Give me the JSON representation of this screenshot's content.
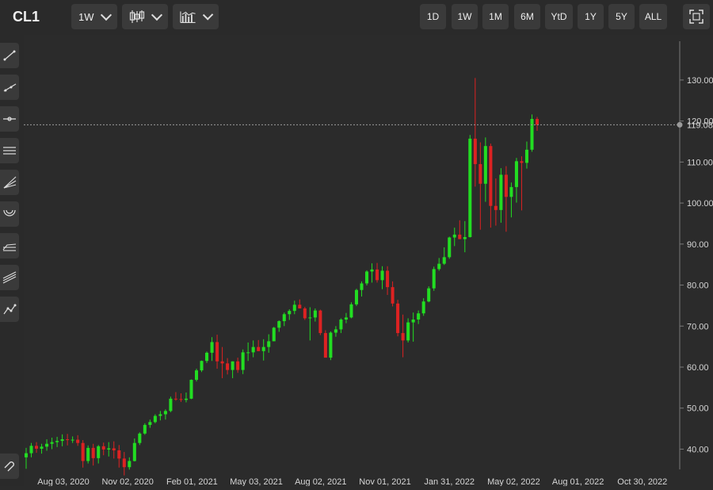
{
  "header": {
    "symbol": "CL1",
    "interval": "1W",
    "chart_style_icon": "candlestick-icon",
    "study_icon": "bar-chart-icon",
    "ranges": [
      "1D",
      "1W",
      "1M",
      "6M",
      "YtD",
      "1Y",
      "5Y",
      "ALL"
    ],
    "fullscreen_icon": "fullscreen-icon"
  },
  "toolbar": {
    "tools": [
      "trend-line-icon",
      "ray-line-icon",
      "horizontal-line-icon",
      "parallel-channel-icon",
      "fan-lines-icon",
      "arc-icon",
      "fibonacci-icon",
      "pitchfork-icon",
      "polyline-icon",
      "magnet-icon"
    ]
  },
  "colors": {
    "up": "#22dd22",
    "down": "#dd2222",
    "background": "#2b2b2b"
  },
  "price_line": {
    "value": 119.08,
    "label": "119.08"
  },
  "chart_data": {
    "type": "candlestick",
    "symbol": "CL1",
    "interval": "weekly",
    "y_ticks": [
      40,
      50,
      60,
      70,
      80,
      90,
      100,
      110,
      120,
      130
    ],
    "y_tick_labels": [
      "40.00",
      "50.00",
      "60.00",
      "70.00",
      "80.00",
      "90.00",
      "100.00",
      "110.00",
      "120.00",
      "130.00"
    ],
    "ylim": [
      31,
      141
    ],
    "x_ticks": [
      "Aug 03, 2020",
      "Nov 02, 2020",
      "Feb 01, 2021",
      "May 03, 2021",
      "Aug 02, 2021",
      "Nov 01, 2021",
      "Jan 31, 2022",
      "May 02, 2022",
      "Aug 01, 2022",
      "Oct 30, 2022"
    ],
    "grid": false,
    "last_price": 119.08,
    "candles": [
      [
        38.0,
        40.3,
        35.2,
        39.0
      ],
      [
        39.0,
        41.5,
        38.0,
        40.8
      ],
      [
        40.8,
        41.7,
        39.1,
        40.1
      ],
      [
        40.1,
        41.3,
        38.9,
        40.6
      ],
      [
        40.6,
        42.4,
        39.6,
        41.3
      ],
      [
        41.3,
        42.8,
        40.0,
        41.7
      ],
      [
        41.7,
        43.0,
        40.5,
        42.0
      ],
      [
        42.0,
        43.6,
        40.7,
        42.4
      ],
      [
        42.4,
        43.7,
        40.9,
        42.3
      ],
      [
        42.3,
        43.1,
        41.5,
        42.3
      ],
      [
        42.3,
        43.4,
        40.8,
        41.5
      ],
      [
        41.5,
        42.2,
        35.5,
        37.1
      ],
      [
        37.1,
        40.9,
        36.5,
        40.3
      ],
      [
        40.3,
        41.3,
        36.0,
        37.8
      ],
      [
        37.8,
        41.0,
        36.5,
        40.7
      ],
      [
        40.7,
        41.6,
        38.5,
        39.9
      ],
      [
        39.9,
        41.7,
        38.2,
        40.2
      ],
      [
        40.2,
        41.9,
        37.7,
        39.7
      ],
      [
        39.7,
        41.0,
        35.5,
        37.7
      ],
      [
        37.7,
        39.3,
        33.6,
        35.6
      ],
      [
        35.6,
        38.0,
        35.0,
        37.1
      ],
      [
        37.1,
        42.6,
        37.0,
        41.5
      ],
      [
        41.5,
        44.1,
        41.0,
        43.8
      ],
      [
        43.8,
        46.3,
        43.5,
        45.9
      ],
      [
        45.9,
        47.2,
        45.2,
        46.6
      ],
      [
        46.6,
        48.5,
        46.3,
        48.1
      ],
      [
        48.1,
        49.3,
        47.0,
        48.5
      ],
      [
        48.5,
        49.7,
        47.2,
        49.3
      ],
      [
        49.3,
        52.8,
        49.0,
        52.3
      ],
      [
        52.3,
        53.9,
        51.8,
        52.2
      ],
      [
        52.2,
        53.6,
        51.5,
        52.0
      ],
      [
        52.0,
        53.8,
        51.4,
        52.3
      ],
      [
        52.3,
        57.0,
        52.2,
        56.9
      ],
      [
        56.9,
        59.6,
        56.5,
        59.2
      ],
      [
        59.2,
        61.6,
        58.8,
        61.5
      ],
      [
        61.5,
        63.8,
        61.0,
        63.5
      ],
      [
        63.5,
        67.3,
        61.5,
        66.1
      ],
      [
        66.1,
        67.9,
        59.6,
        61.4
      ],
      [
        61.4,
        64.9,
        57.3,
        60.9
      ],
      [
        60.9,
        62.2,
        58.2,
        59.3
      ],
      [
        59.3,
        61.4,
        57.3,
        61.4
      ],
      [
        61.4,
        62.3,
        58.6,
        59.3
      ],
      [
        59.3,
        64.3,
        58.3,
        63.6
      ],
      [
        63.6,
        66.0,
        61.5,
        63.6
      ],
      [
        63.6,
        66.5,
        62.4,
        64.9
      ],
      [
        64.9,
        66.6,
        63.9,
        63.9
      ],
      [
        63.9,
        66.8,
        61.6,
        64.9
      ],
      [
        64.9,
        68.0,
        63.5,
        66.3
      ],
      [
        66.3,
        69.8,
        66.3,
        69.6
      ],
      [
        69.6,
        71.4,
        68.6,
        71.2
      ],
      [
        71.2,
        73.3,
        70.0,
        72.9
      ],
      [
        72.9,
        74.1,
        71.5,
        73.7
      ],
      [
        73.7,
        76.2,
        72.9,
        75.2
      ],
      [
        75.2,
        76.5,
        74.6,
        74.3
      ],
      [
        74.3,
        74.7,
        71.5,
        71.9
      ],
      [
        71.9,
        74.6,
        66.5,
        72.1
      ],
      [
        72.1,
        74.3,
        71.1,
        73.8
      ],
      [
        73.8,
        74.0,
        67.8,
        68.3
      ],
      [
        68.3,
        69.0,
        62.5,
        62.3
      ],
      [
        62.3,
        68.7,
        61.7,
        68.4
      ],
      [
        68.4,
        70.0,
        67.4,
        69.2
      ],
      [
        69.2,
        71.9,
        68.3,
        71.6
      ],
      [
        71.6,
        73.2,
        70.7,
        72.1
      ],
      [
        72.1,
        75.8,
        71.9,
        75.3
      ],
      [
        75.3,
        79.1,
        74.9,
        78.8
      ],
      [
        78.8,
        80.9,
        77.2,
        80.4
      ],
      [
        80.4,
        83.6,
        79.9,
        83.3
      ],
      [
        83.3,
        85.3,
        80.6,
        83.8
      ],
      [
        83.8,
        85.4,
        80.6,
        81.2
      ],
      [
        81.2,
        84.6,
        79.0,
        83.5
      ],
      [
        83.5,
        84.6,
        77.6,
        79.5
      ],
      [
        79.5,
        80.9,
        74.8,
        75.5
      ],
      [
        75.5,
        76.4,
        67.5,
        68.3
      ],
      [
        68.3,
        72.8,
        62.4,
        66.5
      ],
      [
        66.5,
        71.9,
        66.0,
        70.9
      ],
      [
        70.9,
        73.3,
        66.2,
        71.6
      ],
      [
        71.6,
        73.8,
        70.5,
        73.1
      ],
      [
        73.1,
        76.8,
        72.5,
        76.0
      ],
      [
        76.0,
        79.7,
        75.8,
        79.2
      ],
      [
        79.2,
        84.5,
        78.6,
        83.9
      ],
      [
        83.9,
        86.6,
        83.5,
        85.2
      ],
      [
        85.2,
        89.2,
        84.9,
        86.8
      ],
      [
        86.8,
        91.8,
        86.4,
        91.6
      ],
      [
        91.6,
        94.0,
        89.5,
        92.3
      ],
      [
        92.3,
        95.8,
        91.2,
        91.2
      ],
      [
        91.2,
        95.6,
        88.0,
        91.7
      ],
      [
        91.7,
        116.6,
        91.6,
        115.7
      ],
      [
        115.7,
        130.5,
        104.0,
        109.5
      ],
      [
        109.5,
        114.8,
        93.5,
        104.7
      ],
      [
        104.7,
        116.0,
        100.3,
        113.9
      ],
      [
        113.9,
        114.5,
        94.0,
        99.3
      ],
      [
        99.3,
        106.0,
        94.5,
        98.3
      ],
      [
        98.3,
        108.5,
        95.2,
        106.9
      ],
      [
        106.9,
        109.0,
        93.0,
        101.5
      ],
      [
        101.5,
        105.0,
        96.5,
        103.9
      ],
      [
        103.9,
        111.0,
        100.1,
        110.2
      ],
      [
        110.2,
        111.4,
        98.2,
        109.8
      ],
      [
        109.8,
        115.0,
        108.4,
        113.0
      ],
      [
        113.0,
        121.6,
        112.5,
        120.5
      ],
      [
        120.5,
        121.0,
        117.6,
        119.1
      ]
    ]
  }
}
